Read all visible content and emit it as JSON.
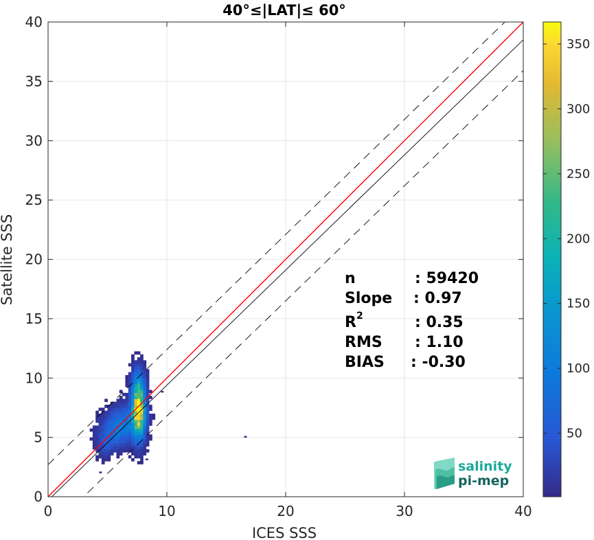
{
  "chart_data": {
    "type": "heatmap",
    "title": "40°≤|LAT|≤ 60°",
    "xlabel": "ICES SSS",
    "ylabel": "Satellite SSS",
    "xlim": [
      0,
      40
    ],
    "ylim": [
      0,
      40
    ],
    "xticks": [
      "0",
      "10",
      "20",
      "30",
      "40"
    ],
    "yticks": [
      "0",
      "5",
      "10",
      "15",
      "20",
      "25",
      "30",
      "35",
      "40"
    ],
    "grid": true,
    "lines": [
      {
        "name": "1:1",
        "color": "#ff0000",
        "style": "solid",
        "slope": 1.0,
        "intercept": 0
      },
      {
        "name": "fit",
        "color": "#000000",
        "style": "solid",
        "slope": 0.97,
        "intercept": -0.3
      },
      {
        "name": "upper",
        "color": "#000000",
        "style": "dashed",
        "slope": 0.97,
        "intercept": 2.7
      },
      {
        "name": "lower",
        "color": "#000000",
        "style": "dashed",
        "slope": 0.97,
        "intercept": -2.9
      }
    ],
    "density_clusters": [
      {
        "cx": 7.5,
        "cy": 7.3,
        "sx": 0.35,
        "sy": 1.5,
        "peak": 365,
        "rot": 0
      },
      {
        "cx": 6.3,
        "cy": 6.1,
        "sx": 1.0,
        "sy": 0.9,
        "peak": 90,
        "rot": 0.8
      },
      {
        "cx": 5.2,
        "cy": 5.0,
        "sx": 0.8,
        "sy": 0.8,
        "peak": 45,
        "rot": 0.8
      },
      {
        "cx": 7.4,
        "cy": 9.5,
        "sx": 0.4,
        "sy": 0.9,
        "peak": 40,
        "rot": 0
      },
      {
        "cx": 4.6,
        "cy": 3.9,
        "sx": 0.4,
        "sy": 0.6,
        "peak": 20,
        "rot": 0
      }
    ],
    "outliers": [
      [
        16.5,
        5.0
      ],
      [
        9.5,
        8.8
      ],
      [
        4.3,
        2.0
      ],
      [
        8.2,
        3.1
      ]
    ],
    "colorbar": {
      "min": 1,
      "max": 367,
      "ticks": [
        "50",
        "100",
        "150",
        "200",
        "250",
        "300",
        "350"
      ],
      "colormap": "parula"
    },
    "stats": {
      "n_label": "n",
      "n_value": ": 59420",
      "slope_label": "Slope",
      "slope_value": ": 0.97",
      "r2_label": "R",
      "r2_sup": "2",
      "r2_value": ": 0.35",
      "rms_label": "RMS",
      "rms_value": ": 1.10",
      "bias_label": "BIAS",
      "bias_value": ": -0.30"
    }
  },
  "logo": {
    "line1": "salinity",
    "line2": "pi-mep",
    "color1": "#1ba99a",
    "color2": "#14655c"
  }
}
